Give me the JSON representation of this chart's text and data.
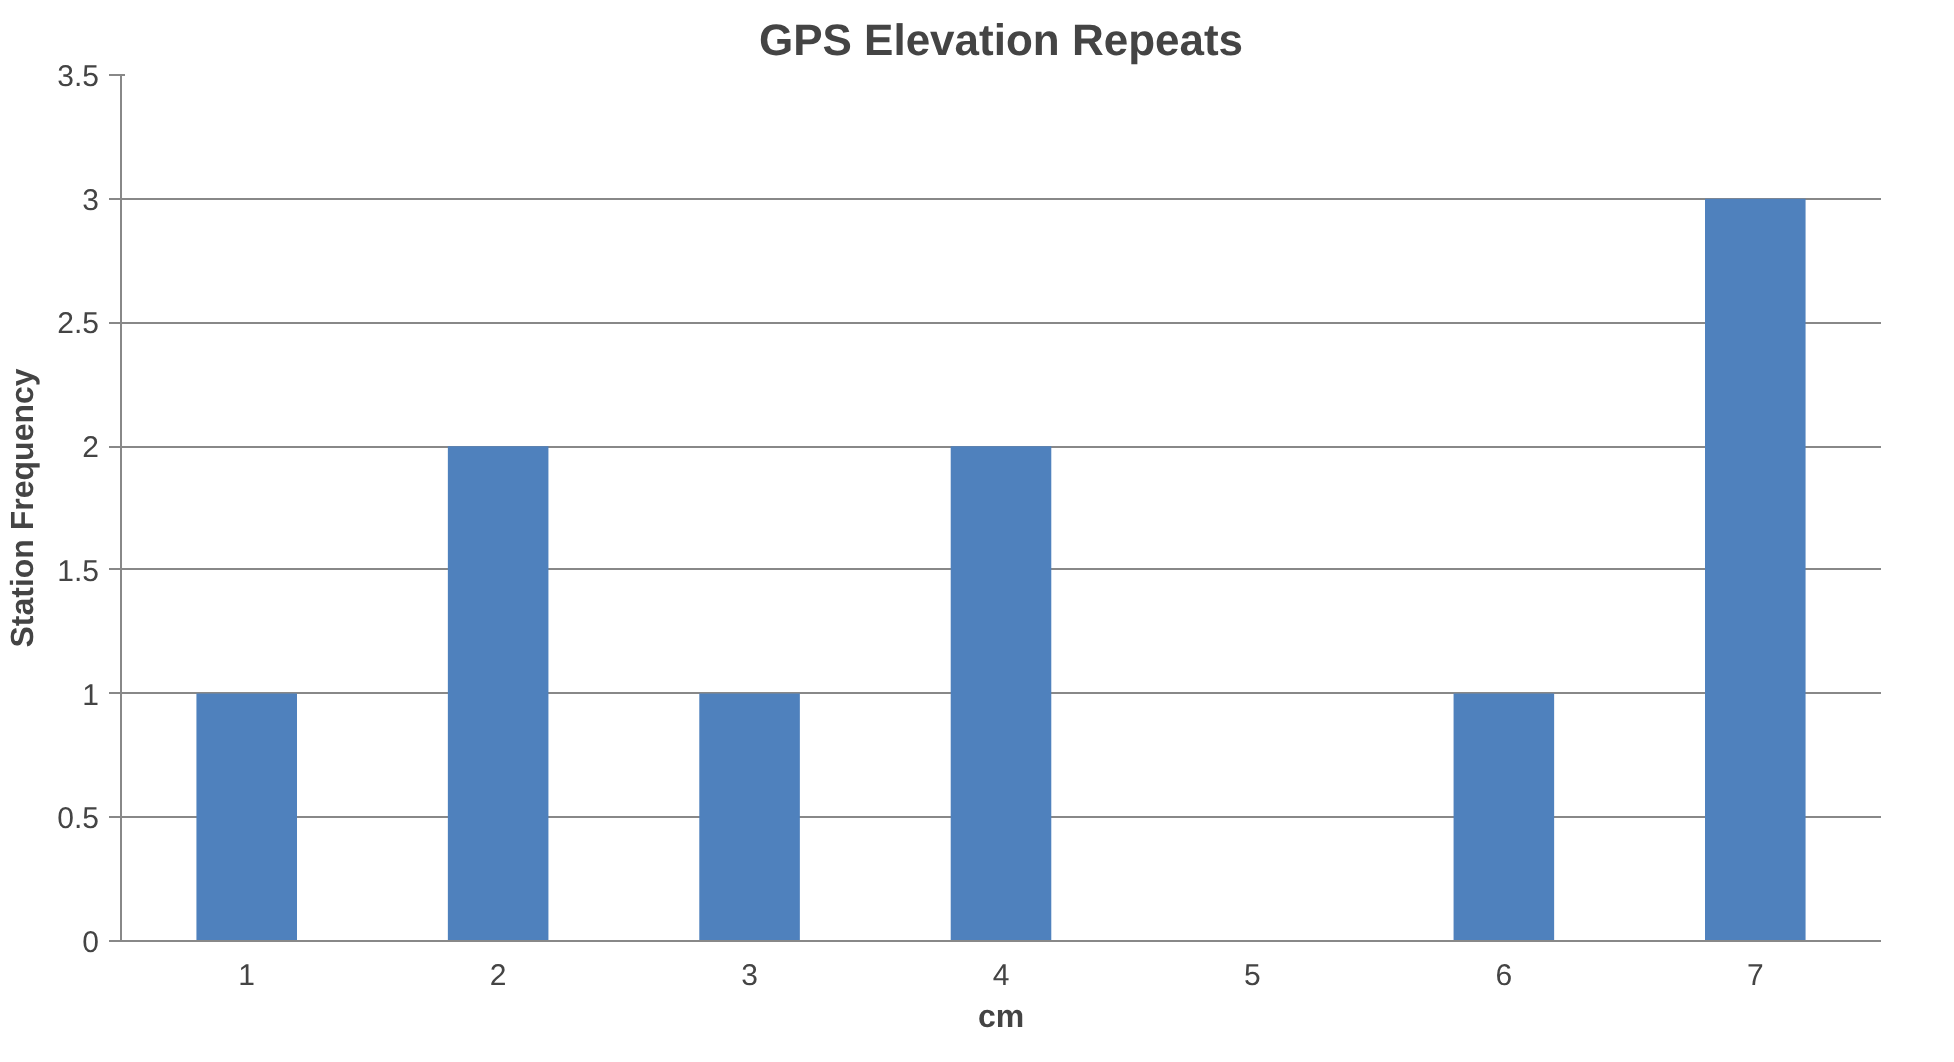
{
  "chart_data": {
    "type": "bar",
    "title": "GPS Elevation Repeats",
    "xlabel": "cm",
    "ylabel": "Station Frequency",
    "categories": [
      "1",
      "2",
      "3",
      "4",
      "5",
      "6",
      "7"
    ],
    "values": [
      1,
      2,
      1,
      2,
      0,
      1,
      3
    ],
    "color": "#4f81bd",
    "ylim": [
      0,
      3.5
    ],
    "yticks": [
      0,
      0.5,
      1,
      1.5,
      2,
      2.5,
      3,
      3.5
    ],
    "grid": "y"
  }
}
